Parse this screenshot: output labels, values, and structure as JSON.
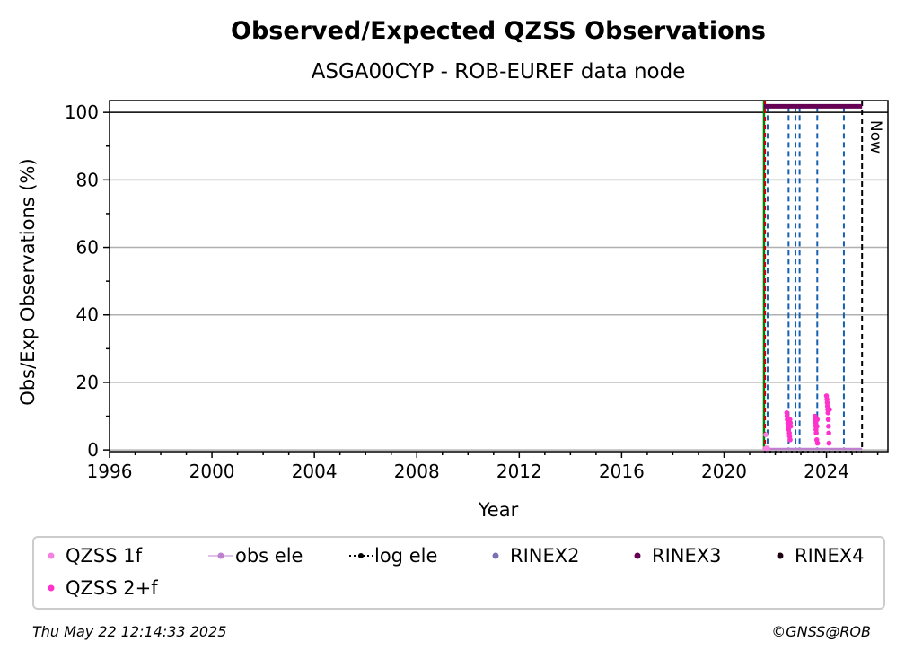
{
  "chart_data": {
    "type": "scatter",
    "title": "Observed/Expected QZSS Observations",
    "subtitle": "ASGA00CYP - ROB-EUREF data node",
    "xlabel": "Year",
    "ylabel": "Obs/Exp Observations (%)",
    "xlim": [
      1996,
      2026.4
    ],
    "ylim": [
      -0.5,
      103.5
    ],
    "x_ticks": [
      "1996",
      "2000",
      "2004",
      "2008",
      "2012",
      "2016",
      "2020",
      "2024"
    ],
    "x_tick_values": [
      1996,
      2000,
      2004,
      2008,
      2012,
      2016,
      2020,
      2024
    ],
    "y_ticks": [
      "0",
      "20",
      "40",
      "60",
      "80",
      "100"
    ],
    "y_tick_values": [
      0,
      20,
      40,
      60,
      80,
      100
    ],
    "grid": "horizontal",
    "reference_line": 100,
    "now_label": "Now",
    "now_year": 2025.39,
    "green_line_year": 2021.56,
    "red_line_year": 2021.6,
    "event_lines": [
      2021.7,
      2022.52,
      2022.79,
      2022.95,
      2023.64,
      2024.68
    ],
    "series": [
      {
        "name": "QZSS 1f",
        "color": "#f781e0",
        "x": [
          2021.6,
          2021.63,
          2021.66,
          2021.7
        ],
        "y": [
          0.4,
          4.5,
          0.6,
          0.5
        ]
      },
      {
        "name": "QZSS 2+f",
        "color": "#ff33cc",
        "x": [
          2022.45,
          2022.46,
          2022.47,
          2022.48,
          2022.49,
          2022.5,
          2022.51,
          2022.52,
          2022.53,
          2022.54,
          2022.55,
          2022.56,
          2022.57,
          2022.58,
          2022.59,
          2022.6,
          2023.55,
          2023.56,
          2023.57,
          2023.58,
          2023.59,
          2023.6,
          2023.61,
          2023.62,
          2023.63,
          2023.64,
          2023.65,
          2024.0,
          2024.02,
          2024.03,
          2024.04,
          2024.05,
          2024.06,
          2024.07,
          2024.08,
          2024.09,
          2024.1,
          2024.12
        ],
        "y": [
          11,
          10,
          9,
          9,
          8,
          8,
          7,
          6,
          7,
          8,
          5,
          4,
          9,
          3,
          8,
          7,
          10,
          9,
          8,
          7,
          6,
          5,
          9,
          3,
          7,
          9,
          2,
          16,
          15,
          14,
          13,
          12,
          11,
          9,
          7,
          5,
          2,
          12
        ]
      },
      {
        "name": "obs ele",
        "color": "#c080d0",
        "x": [
          2021.6,
          2025.39
        ],
        "y": [
          0.3,
          0.3
        ]
      },
      {
        "name": "log ele",
        "color": "#000000",
        "x": [
          2021.56,
          2025.39
        ],
        "y": [
          0,
          0
        ]
      },
      {
        "name": "RINEX2",
        "color": "#7b6fb5",
        "x": [],
        "y": []
      },
      {
        "name": "RINEX3",
        "color": "#660055",
        "x": [
          2021.56,
          2025.39
        ],
        "y": [
          101.8,
          101.8
        ]
      },
      {
        "name": "RINEX4",
        "color": "#1a0010",
        "x": [],
        "y": []
      }
    ],
    "legend_placement": "bottom"
  },
  "footer": {
    "timestamp": "Thu May 22 12:14:33 2025",
    "credit": "©GNSS@ROB"
  }
}
